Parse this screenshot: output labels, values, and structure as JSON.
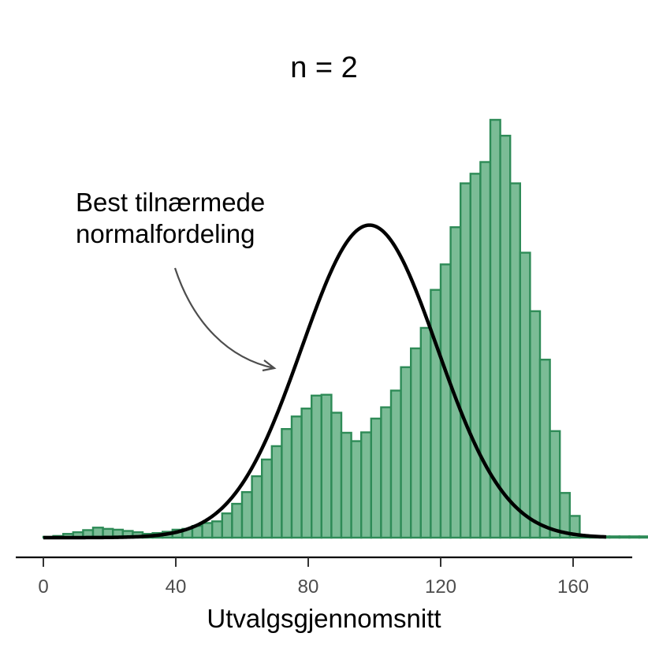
{
  "chart_data": {
    "type": "bar",
    "title": "n = 2",
    "xlabel": "Utvalgsgjennomsnitt",
    "ylabel": "",
    "xlim": [
      -3,
      180
    ],
    "ylim": [
      0,
      1
    ],
    "grid": false,
    "bin_start": 0,
    "bin_width": 3,
    "x_ticks": [
      0,
      40,
      80,
      120,
      160
    ],
    "x_tick_labels": [
      "0",
      "40",
      "80",
      "120",
      "160"
    ],
    "bars": [
      0.002,
      0.004,
      0.009,
      0.013,
      0.018,
      0.024,
      0.021,
      0.019,
      0.016,
      0.013,
      0.009,
      0.011,
      0.014,
      0.019,
      0.021,
      0.028,
      0.035,
      0.039,
      0.058,
      0.081,
      0.109,
      0.147,
      0.187,
      0.219,
      0.26,
      0.29,
      0.309,
      0.34,
      0.342,
      0.299,
      0.251,
      0.231,
      0.252,
      0.285,
      0.312,
      0.352,
      0.408,
      0.453,
      0.502,
      0.593,
      0.654,
      0.743,
      0.848,
      0.871,
      0.899,
      1.0,
      0.962,
      0.848,
      0.682,
      0.542,
      0.426,
      0.255,
      0.107,
      0.052,
      0.004,
      0.003,
      0.003,
      0.003,
      0.003,
      0.003,
      0.003,
      0.003,
      0.003,
      0.002,
      0.002,
      0.002,
      0.002
    ],
    "bar_color": "#7bbc96",
    "bar_edge_color": "#2e8b57",
    "series": [
      {
        "type": "line",
        "mean": 98.5,
        "sd": 20.5,
        "peak": 0.748,
        "x_start": 0,
        "x_end": 170,
        "color": "#000000"
      }
    ],
    "annotation": {
      "lines": [
        "Best tilnærmede",
        "normalfordeling"
      ],
      "arrow_color": "#4d4d4d"
    }
  }
}
